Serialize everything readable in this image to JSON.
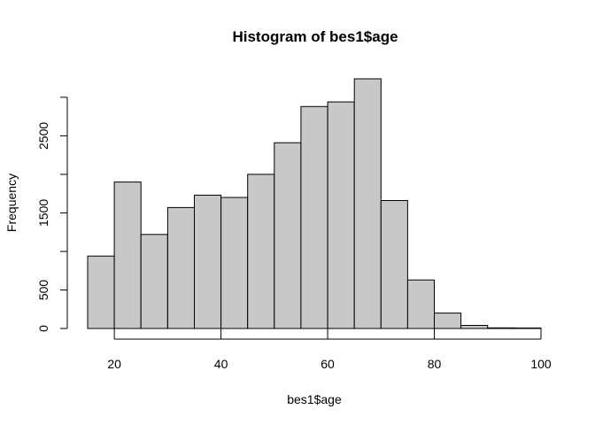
{
  "chart_data": {
    "type": "bar",
    "title": "Histogram of bes1$age",
    "xlabel": "bes1$age",
    "ylabel": "Frequency",
    "bins": [
      {
        "start": 15,
        "end": 20,
        "count": 940
      },
      {
        "start": 20,
        "end": 25,
        "count": 1900
      },
      {
        "start": 25,
        "end": 30,
        "count": 1220
      },
      {
        "start": 30,
        "end": 35,
        "count": 1570
      },
      {
        "start": 35,
        "end": 40,
        "count": 1730
      },
      {
        "start": 40,
        "end": 45,
        "count": 1700
      },
      {
        "start": 45,
        "end": 50,
        "count": 2000
      },
      {
        "start": 50,
        "end": 55,
        "count": 2410
      },
      {
        "start": 55,
        "end": 60,
        "count": 2880
      },
      {
        "start": 60,
        "end": 65,
        "count": 2940
      },
      {
        "start": 65,
        "end": 70,
        "count": 3240
      },
      {
        "start": 70,
        "end": 75,
        "count": 1660
      },
      {
        "start": 75,
        "end": 80,
        "count": 630
      },
      {
        "start": 80,
        "end": 85,
        "count": 200
      },
      {
        "start": 85,
        "end": 90,
        "count": 40
      },
      {
        "start": 90,
        "end": 95,
        "count": 8
      },
      {
        "start": 95,
        "end": 100,
        "count": 3
      }
    ],
    "xlim": [
      15,
      100
    ],
    "ylim": [
      0,
      3240
    ],
    "x_ticks": [
      20,
      40,
      60,
      80,
      100
    ],
    "y_ticks": [
      0,
      500,
      1500,
      2500
    ],
    "y_minor_ticks": [
      1000,
      2000,
      3000
    ],
    "bar_color": "#c8c8c8",
    "grid": false,
    "legend": "none"
  }
}
